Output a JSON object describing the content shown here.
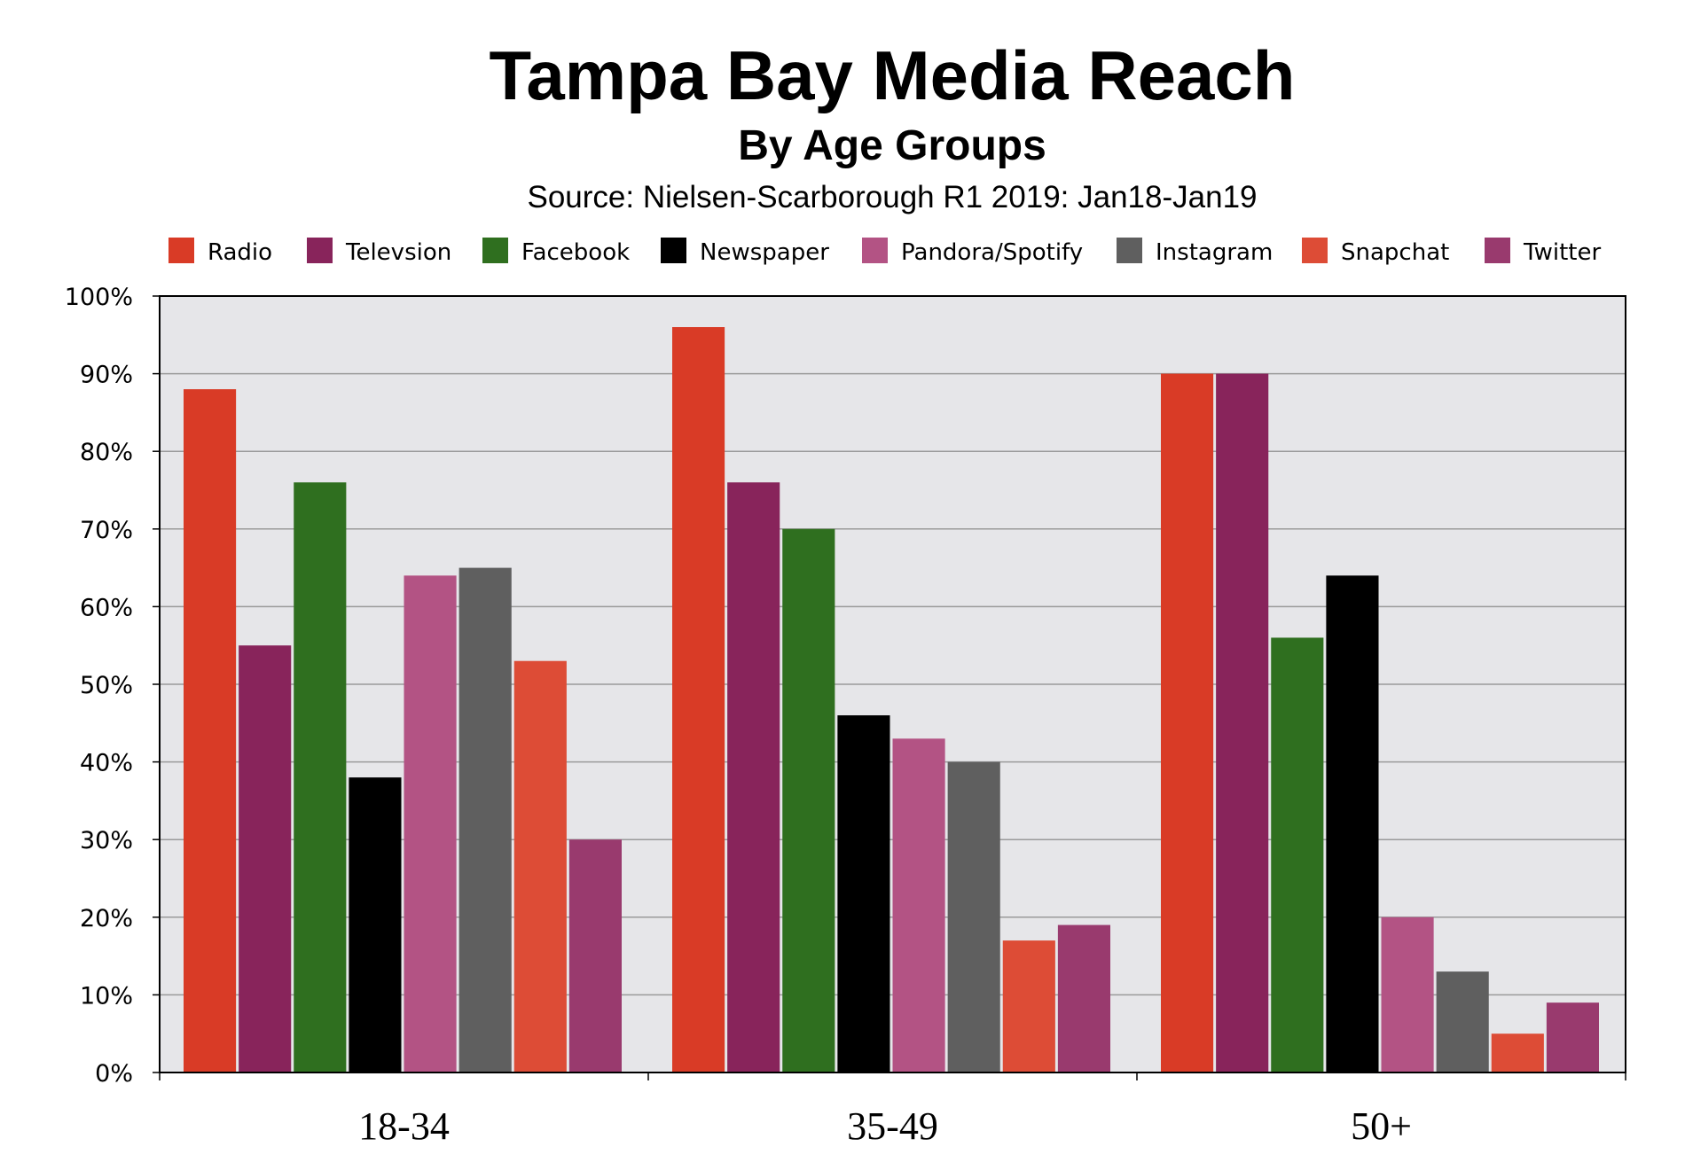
{
  "chart_data": {
    "type": "bar",
    "title": "Tampa Bay Media Reach",
    "subtitle": "By Age Groups",
    "source": "Source: Nielsen-Scarborough R1 2019: Jan18-Jan19",
    "xlabel": "",
    "ylabel": "",
    "categories": [
      "18-34",
      "35-49",
      "50+"
    ],
    "ylim": [
      0,
      100
    ],
    "yticks": [
      0,
      10,
      20,
      30,
      40,
      50,
      60,
      70,
      80,
      90,
      100
    ],
    "ytick_suffix": "%",
    "grid": true,
    "legend_position": "top",
    "series": [
      {
        "name": "Radio",
        "color": "#d93b26",
        "values": [
          88,
          96,
          90
        ]
      },
      {
        "name": "Televsion",
        "color": "#88245b",
        "values": [
          55,
          76,
          90
        ]
      },
      {
        "name": "Facebook",
        "color": "#2f6f1f",
        "values": [
          76,
          70,
          56
        ]
      },
      {
        "name": "Newspaper",
        "color": "#000000",
        "values": [
          38,
          46,
          64
        ]
      },
      {
        "name": "Pandora/Spotify",
        "color": "#b35384",
        "values": [
          64,
          43,
          20
        ]
      },
      {
        "name": "Instagram",
        "color": "#5f5f5f",
        "values": [
          65,
          40,
          13
        ]
      },
      {
        "name": "Snapchat",
        "color": "#dd4c36",
        "values": [
          53,
          17,
          5
        ]
      },
      {
        "name": "Twitter",
        "color": "#993a6e",
        "values": [
          30,
          19,
          9
        ]
      }
    ],
    "plot_background": "#e6e6e9"
  }
}
